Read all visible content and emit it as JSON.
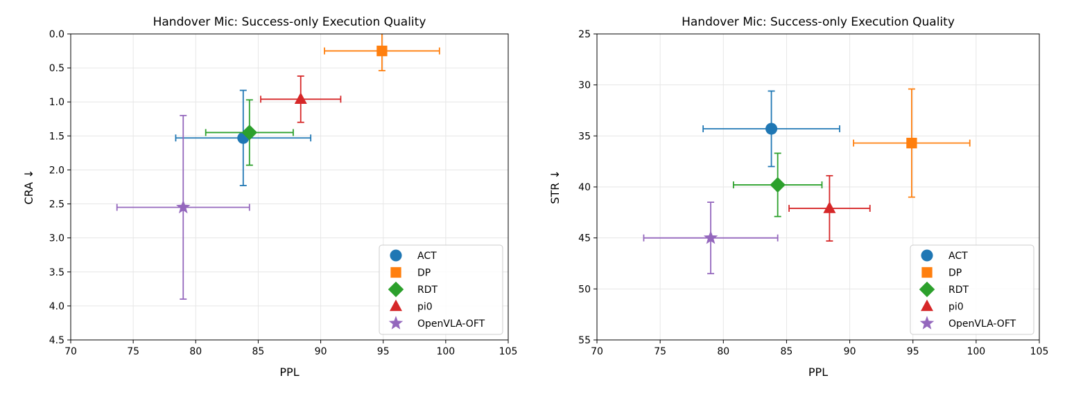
{
  "chart_data": [
    {
      "type": "scatter",
      "title": "Handover Mic: Success-only Execution Quality",
      "xlabel": "PPL",
      "ylabel": "CRA ↓",
      "xlim": [
        70,
        105
      ],
      "ylim": [
        4.5,
        0.0
      ],
      "y_inverted": true,
      "xticks": [
        "70",
        "75",
        "80",
        "85",
        "90",
        "95",
        "100",
        "105"
      ],
      "yticks": [
        "0.0",
        "0.5",
        "1.0",
        "1.5",
        "2.0",
        "2.5",
        "3.0",
        "3.5",
        "4.0",
        "4.5"
      ],
      "grid": true,
      "legend_position": "lower-right",
      "series": [
        {
          "name": "ACT",
          "marker": "circle",
          "color": "#1f77b4",
          "x": 83.8,
          "y": 1.53,
          "xerr": 5.4,
          "yerr": 0.7
        },
        {
          "name": "DP",
          "marker": "square",
          "color": "#ff7f0e",
          "x": 94.9,
          "y": 0.25,
          "xerr": 4.6,
          "yerr": 0.29
        },
        {
          "name": "RDT",
          "marker": "diamond",
          "color": "#2ca02c",
          "x": 84.3,
          "y": 1.45,
          "xerr": 3.5,
          "yerr": 0.48
        },
        {
          "name": "pi0",
          "marker": "triangle",
          "color": "#d62728",
          "x": 88.4,
          "y": 0.96,
          "xerr": 3.2,
          "yerr": 0.34
        },
        {
          "name": "OpenVLA-OFT",
          "marker": "star",
          "color": "#9467bd",
          "x": 79.0,
          "y": 2.55,
          "xerr": 5.3,
          "yerr": 1.35
        }
      ]
    },
    {
      "type": "scatter",
      "title": "Handover Mic: Success-only Execution Quality",
      "xlabel": "PPL",
      "ylabel": "STR ↓",
      "xlim": [
        70,
        105
      ],
      "ylim": [
        55,
        25
      ],
      "y_inverted": true,
      "xticks": [
        "70",
        "75",
        "80",
        "85",
        "90",
        "95",
        "100",
        "105"
      ],
      "yticks": [
        "25",
        "30",
        "35",
        "40",
        "45",
        "50",
        "55"
      ],
      "grid": true,
      "legend_position": "lower-right",
      "series": [
        {
          "name": "ACT",
          "marker": "circle",
          "color": "#1f77b4",
          "x": 83.8,
          "y": 34.3,
          "xerr": 5.4,
          "yerr": 3.7
        },
        {
          "name": "DP",
          "marker": "square",
          "color": "#ff7f0e",
          "x": 94.9,
          "y": 35.7,
          "xerr": 4.6,
          "yerr": 5.3
        },
        {
          "name": "RDT",
          "marker": "diamond",
          "color": "#2ca02c",
          "x": 84.3,
          "y": 39.8,
          "xerr": 3.5,
          "yerr": 3.1
        },
        {
          "name": "pi0",
          "marker": "triangle",
          "color": "#d62728",
          "x": 88.4,
          "y": 42.1,
          "xerr": 3.2,
          "yerr": 3.2
        },
        {
          "name": "OpenVLA-OFT",
          "marker": "star",
          "color": "#9467bd",
          "x": 79.0,
          "y": 45.0,
          "xerr": 5.3,
          "yerr": 3.5
        }
      ]
    }
  ]
}
